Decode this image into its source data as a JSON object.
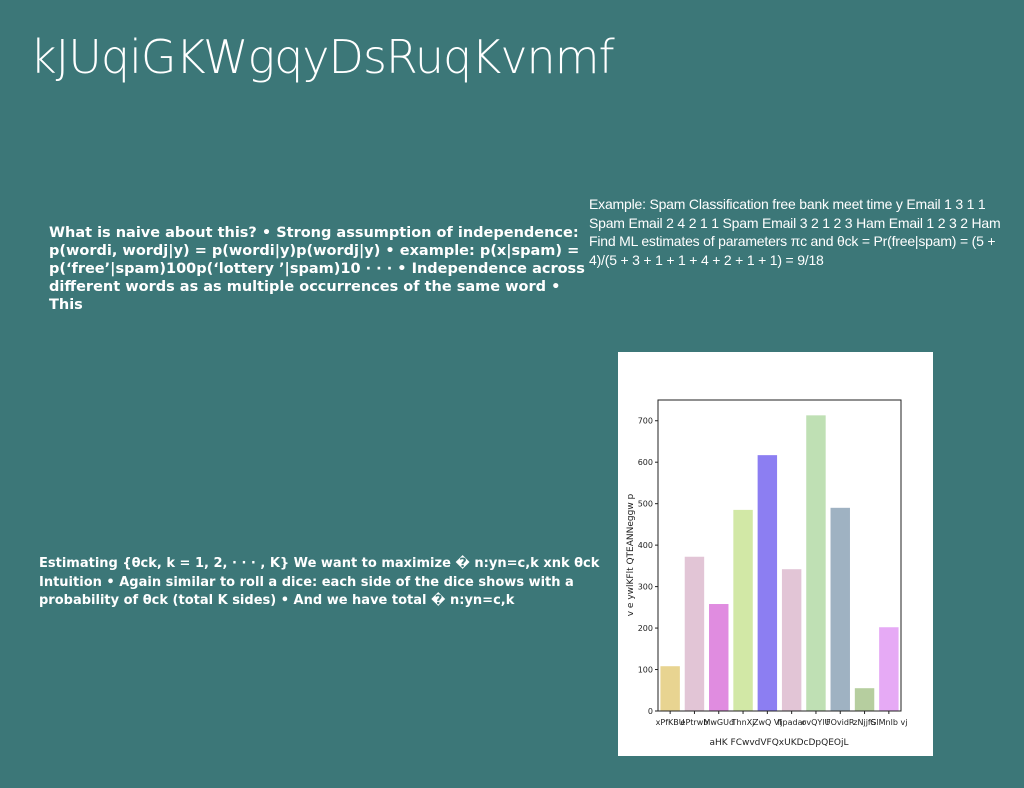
{
  "slide": {
    "title": "kJUqiGKWgqyDsRuqKvnmf",
    "naive_text": "What is naive about this? • Strong assumption of independence: p(wordi, wordj|y) = p(wordi|y)p(wordj|y) • example: p(x|spam) = p(‘free’|spam)100p(‘lottery ’|spam)10 · · · • Independence across different words as as multiple occurrences of the same word • This",
    "example_text": "Example: Spam Classification free bank meet time y Email 1 3 1 1 Spam Email 2 4 2 1 1 Spam Email 3 2 1 2 3 Ham Email 1 2 3 2 Ham Find ML estimates of parameters πc and θck = Pr(free|spam) = (5 + 4)/(5 + 3 + 1 + 1 + 4 + 2 + 1 + 1) = 9/18",
    "estimating_text": "Estimating {θck, k = 1, 2, · · · , K} We want to maximize � n:yn=c,k xnk θck Intuition • Again similar to roll a dice: each side of the dice shows with a probability of θck (total K sides) • And we have total � n:yn=c,k"
  },
  "chart_data": {
    "type": "bar",
    "categories": [
      "xPfKBU",
      "ePtrwb",
      "MwGUd",
      "ThnXj",
      "ZwQ VI",
      "fjpadar",
      "ovQYlU",
      "FOvidR",
      "zNjjfS",
      "GlMnlb vj"
    ],
    "values": [
      108,
      372,
      258,
      485,
      617,
      342,
      713,
      490,
      55,
      202
    ],
    "colors": [
      "#e8d491",
      "#e2c5d6",
      "#e08ce0",
      "#d2e8a6",
      "#8c7ef2",
      "#e2c5d6",
      "#bfe0b4",
      "#9fb2c2",
      "#b6ce9f",
      "#e6aaf5"
    ],
    "title": "",
    "xlabel": "aHK FCwvdVFQxUKDcDpQEOjL",
    "ylabel": "v e ywlKFlt QTEANNeggw p",
    "yticks": [
      "0",
      "100",
      "200",
      "300",
      "400",
      "500",
      "600",
      "700"
    ],
    "ylim": [
      0,
      750
    ],
    "grid": false
  }
}
